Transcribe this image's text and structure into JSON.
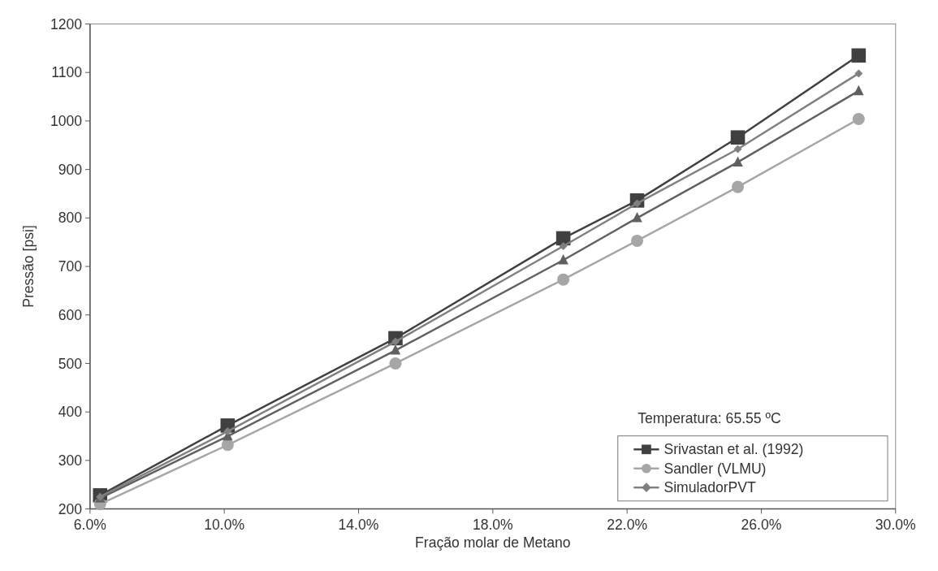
{
  "chart_data": {
    "type": "line",
    "xlabel": "Fração molar de Metano",
    "ylabel": "Pressão [psi]",
    "x": [
      6.3,
      10.1,
      15.1,
      20.1,
      22.3,
      25.3,
      28.9
    ],
    "xlim": [
      6,
      30
    ],
    "xticks": [
      {
        "value": 6,
        "label": "6.0%"
      },
      {
        "value": 10,
        "label": "10.0%"
      },
      {
        "value": 14,
        "label": "14.0%"
      },
      {
        "value": 18,
        "label": "18.0%"
      },
      {
        "value": 22,
        "label": "22.0%"
      },
      {
        "value": 26,
        "label": "26.0%"
      },
      {
        "value": 30,
        "label": "30.0%"
      }
    ],
    "ylim": [
      200,
      1200
    ],
    "yticks": [
      200,
      300,
      400,
      500,
      600,
      700,
      800,
      900,
      1000,
      1100,
      1200
    ],
    "grid": false,
    "legend": "bottom right",
    "annotations": [
      "Temperatura: 65.55 ºC"
    ],
    "series": [
      {
        "name": "Srivastan et al. (1992)",
        "color": "#404040",
        "marker": "square",
        "values": [
          228,
          372,
          552,
          758,
          836,
          966,
          1135
        ]
      },
      {
        "name": "Sandler (VLMU)",
        "color": "#a6a6a6",
        "marker": "circle",
        "values": [
          210,
          332,
          500,
          673,
          753,
          864,
          1004
        ]
      },
      {
        "color": "#606060",
        "marker": "triangle",
        "values": [
          222,
          350,
          527,
          713,
          800,
          915,
          1062
        ]
      },
      {
        "name": "SimuladorPVT",
        "color": "#808080",
        "marker": "diamond",
        "values": [
          225,
          360,
          545,
          742,
          830,
          942,
          1098
        ]
      }
    ]
  }
}
